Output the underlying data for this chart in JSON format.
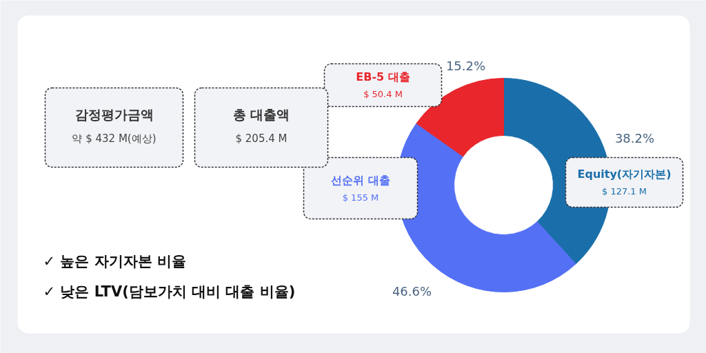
{
  "chart_data": {
    "type": "donut",
    "categories": [
      "Equity(자기자본)",
      "선순위 대출",
      "EB-5 대출"
    ],
    "values": [
      38.2,
      46.6,
      15.2
    ],
    "colors": [
      "#1a6faa",
      "#5470f5",
      "#e8262b"
    ],
    "value_labels": [
      "38.2%",
      "46.6%",
      "15.2%"
    ],
    "legend": false,
    "annotations": [
      "$ 127.1 M",
      "$ 155 M",
      "$ 50.4 M",
      "감정평가금액",
      "약 $ 432 M(예상)",
      "총 대출액",
      "$ 205.4 M",
      "✓ 높은 자기자본 비율",
      "✓ 낮은 LTV(담보가치 대비 대출 비율)"
    ]
  }
}
